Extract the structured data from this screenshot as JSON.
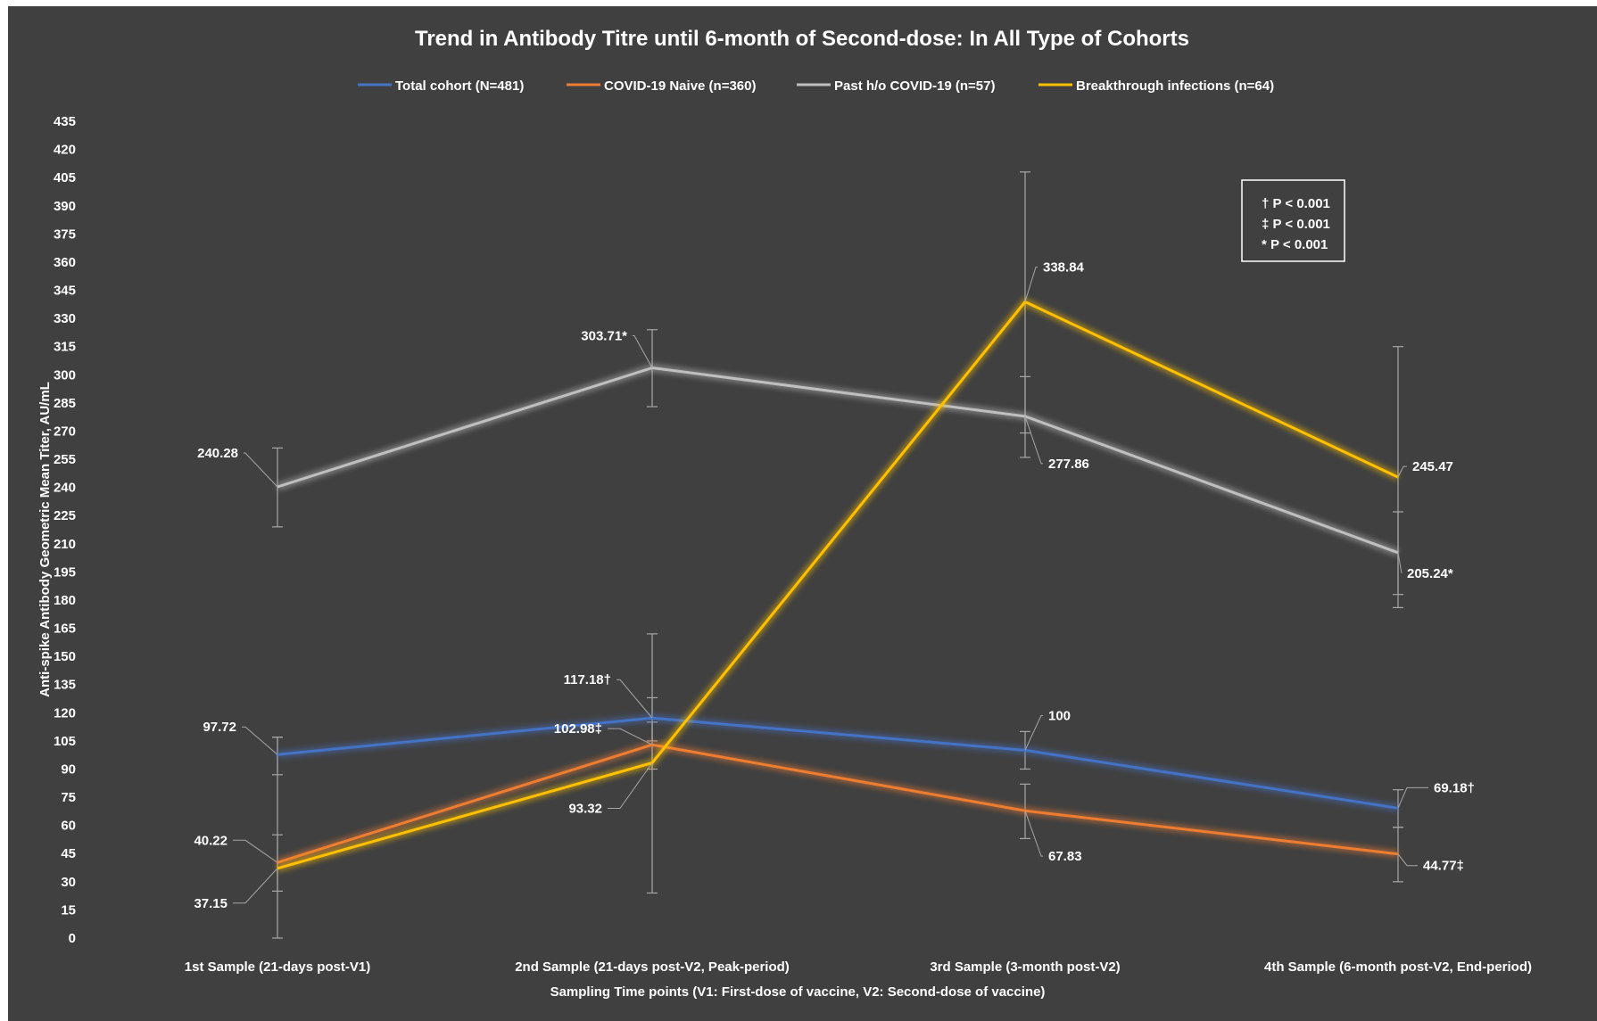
{
  "chart_data": {
    "type": "line",
    "title": "Trend in Antibody Titre until 6-month of Second-dose: In All Type of Cohorts",
    "xlabel": "Sampling Time points (V1: First-dose of vaccine, V2: Second-dose of vaccine)",
    "ylabel": "Anti-spike Antibody Geometric Mean Titer, AU/mL",
    "ylim": [
      0,
      435
    ],
    "yticks": [
      "0",
      "15",
      "30",
      "45",
      "60",
      "75",
      "90",
      "105",
      "120",
      "135",
      "150",
      "165",
      "180",
      "195",
      "210",
      "225",
      "240",
      "255",
      "270",
      "285",
      "300",
      "315",
      "330",
      "345",
      "360",
      "375",
      "390",
      "405",
      "420",
      "435"
    ],
    "categories": [
      "1st Sample (21-days post-V1)",
      "2nd Sample (21-days post-V2, Peak-period)",
      "3rd Sample (3-month post-V2)",
      "4th Sample (6-month post-V2, End-period)"
    ],
    "legend_position": "top",
    "grid": false,
    "series": [
      {
        "name": "Total cohort (N=481)",
        "color": "#4472C4",
        "values": [
          97.72,
          117.18,
          100,
          69.18
        ],
        "labels": [
          "97.72",
          "117.18†",
          "100",
          "69.18†"
        ],
        "error_low": [
          87,
          105,
          90,
          59
        ],
        "error_high": [
          107,
          128,
          110,
          79
        ]
      },
      {
        "name": "COVID-19 Naive (n=360)",
        "color": "#ED7D31",
        "values": [
          40.22,
          102.98,
          67.83,
          44.77
        ],
        "labels": [
          "40.22",
          "102.98‡",
          "67.83",
          "44.77‡"
        ],
        "error_low": [
          25,
          90,
          53,
          30
        ],
        "error_high": [
          55,
          115,
          82,
          59
        ]
      },
      {
        "name": "Past h/o COVID-19 (n=57)",
        "color": "#BFBFBF",
        "values": [
          240.28,
          303.71,
          277.86,
          205.24
        ],
        "labels": [
          "240.28",
          "303.71*",
          "277.86",
          "205.24*"
        ],
        "error_low": [
          219,
          283,
          256,
          183
        ],
        "error_high": [
          261,
          324,
          299,
          227
        ]
      },
      {
        "name": "Breakthrough infections (n=64)",
        "color": "#FFC000",
        "values": [
          37.15,
          93.32,
          338.84,
          245.47
        ],
        "labels": [
          "37.15",
          "93.32",
          "338.84",
          "245.47"
        ],
        "error_low": [
          0,
          24,
          269,
          176
        ],
        "error_high": [
          107,
          162,
          408,
          315
        ]
      }
    ],
    "notes": [
      "† P < 0.001",
      "‡ P < 0.001",
      "* P < 0.001"
    ]
  }
}
